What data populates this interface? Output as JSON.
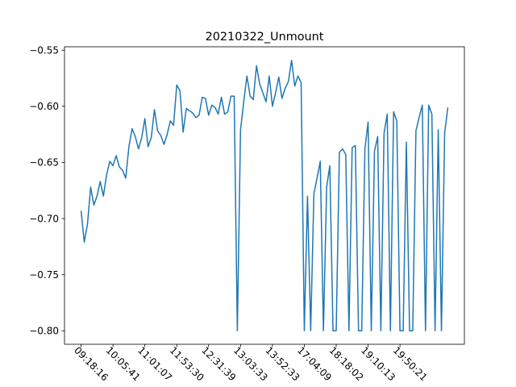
{
  "chart_data": {
    "type": "line",
    "title": "20210322_Unmount",
    "xlabel": "",
    "ylabel": "",
    "ylim": [
      -0.812,
      -0.547
    ],
    "grid": false,
    "line_color": "#1f77b4",
    "xtick_labels": [
      "09:18:16",
      "10:05:41",
      "11:01:07",
      "11:53:30",
      "12:31:39",
      "13:03:33",
      "13:52:33",
      "17:04:09",
      "18:18:02",
      "19:10:13",
      "19:50:21"
    ],
    "xtick_positions": [
      0,
      10,
      20,
      30,
      40,
      50,
      60,
      70,
      80,
      90,
      100
    ],
    "yticks": [
      -0.8,
      -0.75,
      -0.7,
      -0.65,
      -0.6,
      -0.55
    ],
    "ytick_labels": [
      "−0.80",
      "−0.75",
      "−0.70",
      "−0.65",
      "−0.60",
      "−0.55"
    ],
    "series": [
      {
        "values": [
          -0.693,
          -0.721,
          -0.705,
          -0.672,
          -0.688,
          -0.68,
          -0.667,
          -0.68,
          -0.661,
          -0.649,
          -0.653,
          -0.644,
          -0.654,
          -0.657,
          -0.664,
          -0.636,
          -0.62,
          -0.627,
          -0.638,
          -0.628,
          -0.611,
          -0.636,
          -0.628,
          -0.603,
          -0.622,
          -0.626,
          -0.634,
          -0.625,
          -0.613,
          -0.617,
          -0.581,
          -0.586,
          -0.623,
          -0.602,
          -0.604,
          -0.606,
          -0.61,
          -0.608,
          -0.592,
          -0.593,
          -0.608,
          -0.599,
          -0.601,
          -0.607,
          -0.592,
          -0.607,
          -0.605,
          -0.591,
          -0.591,
          -0.8,
          -0.621,
          -0.596,
          -0.573,
          -0.591,
          -0.594,
          -0.564,
          -0.58,
          -0.588,
          -0.596,
          -0.573,
          -0.6,
          -0.588,
          -0.574,
          -0.593,
          -0.584,
          -0.578,
          -0.559,
          -0.582,
          -0.573,
          -0.579,
          -0.8,
          -0.68,
          -0.8,
          -0.678,
          -0.664,
          -0.649,
          -0.8,
          -0.672,
          -0.653,
          -0.8,
          -0.8,
          -0.641,
          -0.638,
          -0.643,
          -0.8,
          -0.637,
          -0.635,
          -0.8,
          -0.8,
          -0.638,
          -0.614,
          -0.8,
          -0.64,
          -0.627,
          -0.8,
          -0.624,
          -0.607,
          -0.8,
          -0.605,
          -0.613,
          -0.8,
          -0.8,
          -0.632,
          -0.8,
          -0.8,
          -0.622,
          -0.61,
          -0.599,
          -0.8,
          -0.599,
          -0.607,
          -0.8,
          -0.621,
          -0.8,
          -0.624,
          -0.601
        ]
      }
    ]
  }
}
